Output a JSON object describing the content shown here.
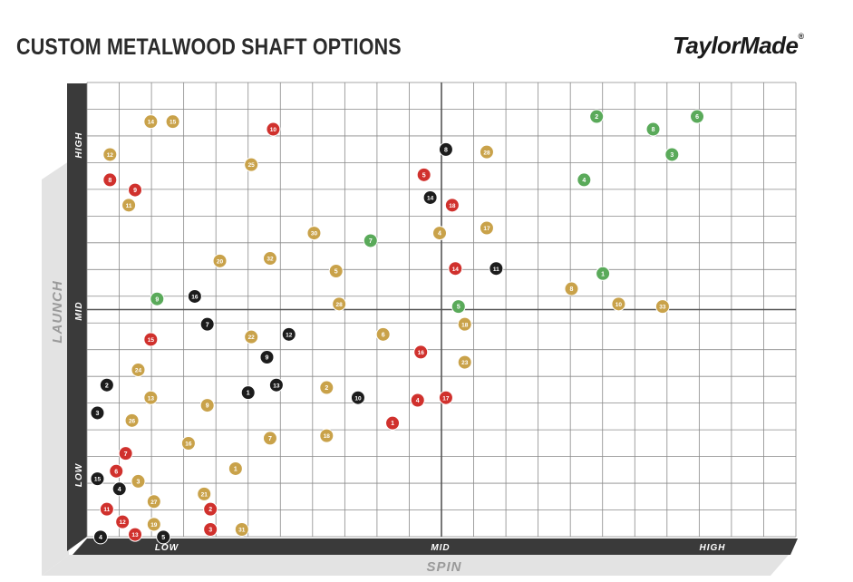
{
  "title": "CUSTOM METALWOOD SHAFT OPTIONS",
  "brand": "TaylorMade",
  "colors": {
    "red": "#d0312d",
    "gold": "#c9a24a",
    "black": "#1c1c1c",
    "green": "#5aaa5a",
    "axis_dark": "#3a3a3a",
    "axis_light": "#dcdcdc"
  },
  "chart_data": {
    "type": "scatter",
    "title": "CUSTOM METALWOOD SHAFT OPTIONS",
    "xlabel": "SPIN",
    "ylabel": "LAUNCH",
    "x_ticks": [
      "LOW",
      "MID",
      "HIGH"
    ],
    "y_ticks": [
      "LOW",
      "MID",
      "HIGH"
    ],
    "xlim": [
      0,
      22
    ],
    "ylim": [
      0,
      17
    ],
    "grid": true,
    "series": [
      {
        "color": "red",
        "points": [
          {
            "label": "10",
            "x": 5.7,
            "y": 15.8
          },
          {
            "label": "8",
            "x": 0.5,
            "y": 13.8
          },
          {
            "label": "9",
            "x": 1.3,
            "y": 13.4
          },
          {
            "label": "5",
            "x": 10.5,
            "y": 14.0
          },
          {
            "label": "18",
            "x": 11.4,
            "y": 12.8
          },
          {
            "label": "14",
            "x": 11.5,
            "y": 10.3
          },
          {
            "label": "15",
            "x": 1.8,
            "y": 7.5
          },
          {
            "label": "16",
            "x": 10.4,
            "y": 7.0
          },
          {
            "label": "4",
            "x": 10.3,
            "y": 5.1
          },
          {
            "label": "17",
            "x": 11.2,
            "y": 5.2
          },
          {
            "label": "1",
            "x": 9.5,
            "y": 4.2
          },
          {
            "label": "7",
            "x": 1.0,
            "y": 3.0
          },
          {
            "label": "6",
            "x": 0.7,
            "y": 2.3
          },
          {
            "label": "11",
            "x": 0.4,
            "y": 0.8
          },
          {
            "label": "2",
            "x": 3.7,
            "y": 0.8
          },
          {
            "label": "12",
            "x": 0.9,
            "y": 0.3
          },
          {
            "label": "13",
            "x": 1.3,
            "y": -0.2
          },
          {
            "label": "3",
            "x": 3.7,
            "y": 0.0
          }
        ]
      },
      {
        "color": "gold",
        "points": [
          {
            "label": "14",
            "x": 1.8,
            "y": 16.1
          },
          {
            "label": "15",
            "x": 2.5,
            "y": 16.1
          },
          {
            "label": "12",
            "x": 0.5,
            "y": 14.8
          },
          {
            "label": "25",
            "x": 5.0,
            "y": 14.4
          },
          {
            "label": "28",
            "x": 12.5,
            "y": 14.9
          },
          {
            "label": "11",
            "x": 1.1,
            "y": 12.8
          },
          {
            "label": "30",
            "x": 7.0,
            "y": 11.7
          },
          {
            "label": "4",
            "x": 11.0,
            "y": 11.7
          },
          {
            "label": "17",
            "x": 12.5,
            "y": 11.9
          },
          {
            "label": "20",
            "x": 4.0,
            "y": 10.6
          },
          {
            "label": "32",
            "x": 5.6,
            "y": 10.7
          },
          {
            "label": "5",
            "x": 7.7,
            "y": 10.2
          },
          {
            "label": "8",
            "x": 15.2,
            "y": 9.5
          },
          {
            "label": "10",
            "x": 16.7,
            "y": 8.9
          },
          {
            "label": "33",
            "x": 18.1,
            "y": 8.8
          },
          {
            "label": "28",
            "x": 7.8,
            "y": 8.9
          },
          {
            "label": "18",
            "x": 11.8,
            "y": 8.1
          },
          {
            "label": "22",
            "x": 5.0,
            "y": 7.6
          },
          {
            "label": "6",
            "x": 9.2,
            "y": 7.7
          },
          {
            "label": "23",
            "x": 11.8,
            "y": 6.6
          },
          {
            "label": "24",
            "x": 1.4,
            "y": 6.3
          },
          {
            "label": "2",
            "x": 7.4,
            "y": 5.6
          },
          {
            "label": "13",
            "x": 1.8,
            "y": 5.2
          },
          {
            "label": "9",
            "x": 3.6,
            "y": 4.9
          },
          {
            "label": "26",
            "x": 1.2,
            "y": 4.3
          },
          {
            "label": "18",
            "x": 7.4,
            "y": 3.7
          },
          {
            "label": "7",
            "x": 5.6,
            "y": 3.6
          },
          {
            "label": "16",
            "x": 3.0,
            "y": 3.4
          },
          {
            "label": "1",
            "x": 4.5,
            "y": 2.4
          },
          {
            "label": "3",
            "x": 1.4,
            "y": 1.9
          },
          {
            "label": "21",
            "x": 3.5,
            "y": 1.4
          },
          {
            "label": "27",
            "x": 1.9,
            "y": 1.1
          },
          {
            "label": "19",
            "x": 1.9,
            "y": 0.2
          },
          {
            "label": "31",
            "x": 4.7,
            "y": 0.0
          }
        ]
      },
      {
        "color": "black",
        "points": [
          {
            "label": "8",
            "x": 11.2,
            "y": 15.0
          },
          {
            "label": "14",
            "x": 10.7,
            "y": 13.1
          },
          {
            "label": "11",
            "x": 12.8,
            "y": 10.3
          },
          {
            "label": "16",
            "x": 3.2,
            "y": 9.2
          },
          {
            "label": "7",
            "x": 3.6,
            "y": 8.1
          },
          {
            "label": "12",
            "x": 6.2,
            "y": 7.7
          },
          {
            "label": "9",
            "x": 5.5,
            "y": 6.8
          },
          {
            "label": "2",
            "x": 0.4,
            "y": 5.7
          },
          {
            "label": "1",
            "x": 4.9,
            "y": 5.4
          },
          {
            "label": "13",
            "x": 5.8,
            "y": 5.7
          },
          {
            "label": "10",
            "x": 8.4,
            "y": 5.2
          },
          {
            "label": "3",
            "x": 0.1,
            "y": 4.6
          },
          {
            "label": "4",
            "x": 0.8,
            "y": 1.6
          },
          {
            "label": "15",
            "x": 0.1,
            "y": 2.0
          },
          {
            "label": "4",
            "x": 0.2,
            "y": -0.3
          },
          {
            "label": "5",
            "x": 2.2,
            "y": -0.3
          }
        ]
      },
      {
        "color": "green",
        "points": [
          {
            "label": "2",
            "x": 16.0,
            "y": 16.3
          },
          {
            "label": "6",
            "x": 19.2,
            "y": 16.3
          },
          {
            "label": "8",
            "x": 17.8,
            "y": 15.8
          },
          {
            "label": "3",
            "x": 18.4,
            "y": 14.8
          },
          {
            "label": "4",
            "x": 15.6,
            "y": 13.8
          },
          {
            "label": "7",
            "x": 8.8,
            "y": 11.4
          },
          {
            "label": "1",
            "x": 16.2,
            "y": 10.1
          },
          {
            "label": "5",
            "x": 11.6,
            "y": 8.8
          },
          {
            "label": "9",
            "x": 2.0,
            "y": 9.1
          }
        ]
      }
    ]
  }
}
